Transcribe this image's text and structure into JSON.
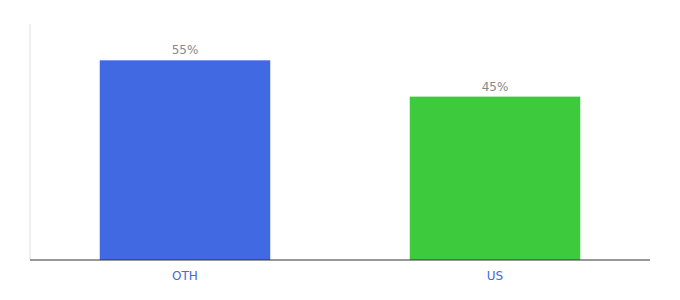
{
  "chart_data": {
    "type": "bar",
    "categories": [
      "OTH",
      "US"
    ],
    "values": [
      55,
      45
    ],
    "value_labels": [
      "55%",
      "45%"
    ],
    "colors": [
      "#4169e1",
      "#3dcb3d"
    ],
    "ylim": [
      0,
      65
    ],
    "data_labels": true,
    "tick_labels": "x",
    "grid": false
  }
}
